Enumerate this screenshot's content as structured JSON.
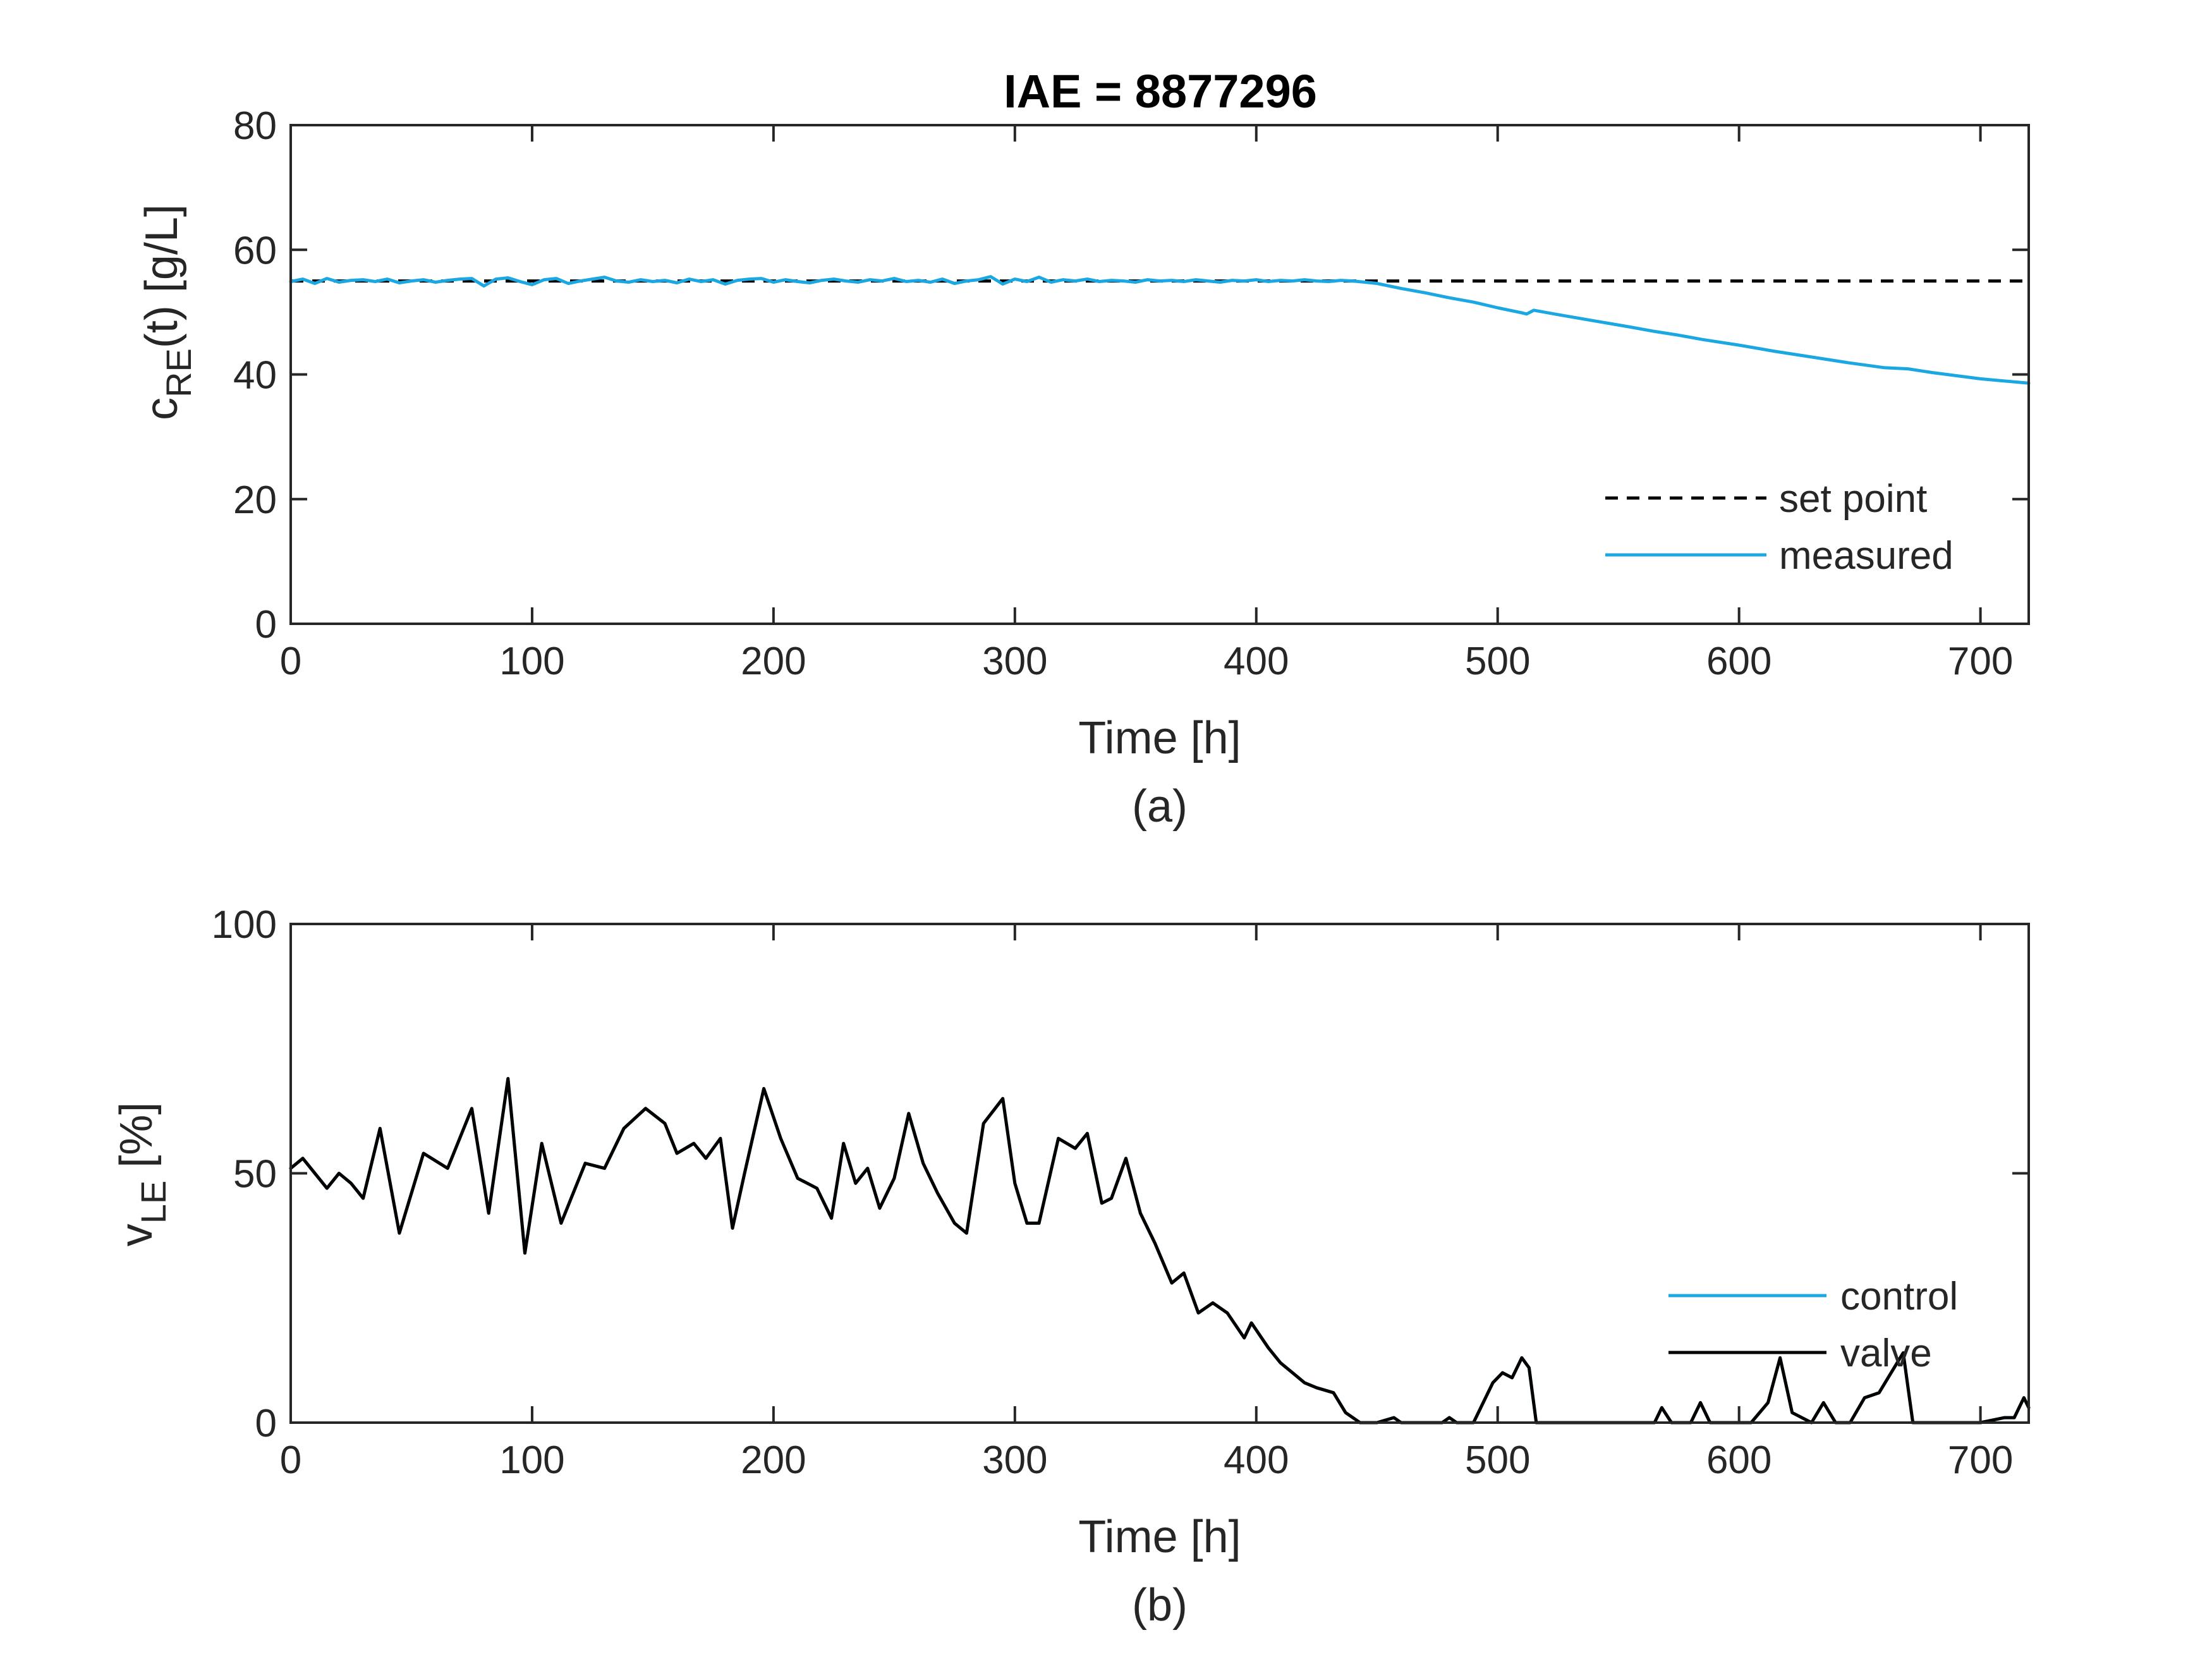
{
  "colors": {
    "axis": "#262626",
    "measured": "#1ba7e1",
    "setpoint": "#000000",
    "control": "#1ba7e1",
    "valve": "#000000"
  },
  "chart_data": [
    {
      "type": "line",
      "title": "IAE = 8877296",
      "xlabel": "Time [h]",
      "ylabel": "c",
      "ylabel_sub": "RE",
      "ylabel_rest": "(t) [g/L]",
      "caption": "(a)",
      "xlim": [
        0,
        720
      ],
      "ylim": [
        0,
        80
      ],
      "xticks": [
        0,
        100,
        200,
        300,
        400,
        500,
        600,
        700
      ],
      "yticks": [
        0,
        20,
        40,
        60,
        80
      ],
      "grid": false,
      "legend_position": "bottom-right",
      "series": [
        {
          "name": "set point",
          "style": "dashed",
          "color": "#000000",
          "x": [
            0,
            720
          ],
          "y": [
            55,
            55
          ]
        },
        {
          "name": "measured",
          "style": "solid",
          "color": "#1ba7e1",
          "x": [
            0,
            5,
            10,
            15,
            20,
            25,
            30,
            35,
            40,
            45,
            50,
            55,
            60,
            65,
            70,
            75,
            80,
            85,
            90,
            95,
            100,
            105,
            110,
            115,
            120,
            125,
            130,
            135,
            140,
            145,
            150,
            155,
            160,
            165,
            170,
            175,
            180,
            185,
            190,
            195,
            200,
            205,
            210,
            215,
            220,
            225,
            230,
            235,
            240,
            245,
            250,
            255,
            260,
            265,
            270,
            275,
            280,
            285,
            290,
            295,
            300,
            305,
            310,
            315,
            320,
            325,
            330,
            335,
            340,
            345,
            350,
            355,
            360,
            365,
            370,
            375,
            380,
            385,
            390,
            395,
            400,
            405,
            410,
            415,
            420,
            425,
            430,
            435,
            440,
            445,
            450,
            460,
            470,
            480,
            490,
            500,
            510,
            512,
            515,
            525,
            540,
            555,
            565,
            575,
            585,
            600,
            615,
            630,
            645,
            660,
            670,
            680,
            700,
            720
          ],
          "y": [
            54.9,
            55.3,
            54.6,
            55.4,
            54.8,
            55.1,
            55.2,
            54.9,
            55.3,
            54.7,
            55.0,
            55.2,
            54.8,
            55.1,
            55.3,
            55.4,
            54.2,
            55.3,
            55.5,
            54.9,
            54.4,
            55.2,
            55.4,
            54.6,
            55.0,
            55.3,
            55.6,
            55.0,
            54.8,
            55.2,
            54.9,
            55.1,
            54.7,
            55.3,
            54.9,
            55.2,
            54.5,
            55.1,
            55.3,
            55.4,
            54.8,
            55.2,
            54.9,
            54.7,
            55.1,
            55.3,
            55.0,
            54.8,
            55.2,
            55.0,
            55.4,
            54.9,
            55.1,
            54.8,
            55.3,
            54.6,
            55.0,
            55.2,
            55.7,
            54.5,
            55.3,
            54.9,
            55.6,
            54.8,
            55.2,
            55.0,
            55.3,
            54.9,
            55.1,
            55.0,
            54.8,
            55.2,
            55.0,
            55.1,
            54.9,
            55.2,
            55.0,
            54.8,
            55.1,
            55.0,
            55.2,
            54.9,
            55.1,
            55.0,
            55.2,
            55.0,
            54.9,
            55.1,
            55.0,
            54.8,
            54.6,
            53.8,
            53.1,
            52.3,
            51.6,
            50.7,
            49.9,
            49.7,
            50.3,
            49.6,
            48.6,
            47.6,
            46.9,
            46.3,
            45.6,
            44.7,
            43.7,
            42.8,
            41.9,
            41.1,
            40.9,
            40.3,
            39.3,
            38.6
          ]
        }
      ]
    },
    {
      "type": "line",
      "title": "",
      "xlabel": "Time [h]",
      "ylabel": "v",
      "ylabel_sub": "LE",
      "ylabel_rest": " [%]",
      "caption": "(b)",
      "xlim": [
        0,
        720
      ],
      "ylim": [
        0,
        100
      ],
      "xticks": [
        0,
        100,
        200,
        300,
        400,
        500,
        600,
        700
      ],
      "yticks": [
        0,
        50,
        100
      ],
      "grid": false,
      "legend_position": "bottom-right",
      "series": [
        {
          "name": "control",
          "style": "solid",
          "color": "#1ba7e1",
          "x": [
            0,
            5,
            10,
            15,
            20,
            25,
            30,
            37,
            45,
            55,
            65,
            75,
            82,
            90,
            97,
            104,
            112,
            122,
            130,
            138,
            147,
            155,
            160,
            167,
            172,
            178,
            183,
            188,
            196,
            203,
            210,
            218,
            224,
            229,
            234,
            239,
            244,
            250,
            256,
            262,
            268,
            275,
            280,
            287,
            295,
            300,
            305,
            310,
            318,
            325,
            330,
            336,
            340,
            346,
            352,
            358,
            365,
            370,
            376,
            382,
            388,
            395,
            398,
            405,
            410,
            415,
            420,
            425,
            432,
            437,
            443,
            447,
            450,
            457,
            460,
            465,
            477,
            480,
            483,
            490,
            498,
            502,
            506,
            510,
            513,
            516,
            540,
            565,
            568,
            572,
            580,
            584,
            588,
            605,
            612,
            617,
            622,
            630,
            635,
            640,
            646,
            652,
            658,
            663,
            668,
            672,
            700,
            710,
            714,
            718,
            720
          ],
          "y": [
            51,
            53,
            50,
            47,
            50,
            48,
            45,
            59,
            38,
            54,
            51,
            63,
            42,
            69,
            34,
            56,
            40,
            52,
            51,
            59,
            63,
            60,
            54,
            56,
            53,
            57,
            39,
            50,
            67,
            57,
            49,
            47,
            41,
            56,
            48,
            51,
            43,
            49,
            62,
            52,
            46,
            40,
            38,
            60,
            65,
            48,
            40,
            40,
            57,
            55,
            58,
            44,
            45,
            53,
            42,
            36,
            28,
            30,
            22,
            24,
            22,
            17,
            20,
            15,
            12,
            10,
            8,
            7,
            6,
            2,
            0,
            0,
            0,
            1,
            0,
            0,
            0,
            1,
            0,
            0,
            8,
            10,
            9,
            13,
            11,
            0,
            0,
            0,
            3,
            0,
            0,
            4,
            0,
            0,
            4,
            13,
            2,
            0,
            4,
            0,
            0,
            5,
            6,
            10,
            14,
            0,
            0,
            1,
            1,
            5,
            3
          ]
        },
        {
          "name": "valve",
          "style": "solid",
          "color": "#000000",
          "x": [
            0,
            5,
            10,
            15,
            20,
            25,
            30,
            37,
            45,
            55,
            65,
            75,
            82,
            90,
            97,
            104,
            112,
            122,
            130,
            138,
            147,
            155,
            160,
            167,
            172,
            178,
            183,
            188,
            196,
            203,
            210,
            218,
            224,
            229,
            234,
            239,
            244,
            250,
            256,
            262,
            268,
            275,
            280,
            287,
            295,
            300,
            305,
            310,
            318,
            325,
            330,
            336,
            340,
            346,
            352,
            358,
            365,
            370,
            376,
            382,
            388,
            395,
            398,
            405,
            410,
            415,
            420,
            425,
            432,
            437,
            443,
            447,
            450,
            457,
            460,
            465,
            477,
            480,
            483,
            490,
            498,
            502,
            506,
            510,
            513,
            516,
            540,
            565,
            568,
            572,
            580,
            584,
            588,
            605,
            612,
            617,
            622,
            630,
            635,
            640,
            646,
            652,
            658,
            663,
            668,
            672,
            700,
            710,
            714,
            718,
            720
          ],
          "y": [
            51,
            53,
            50,
            47,
            50,
            48,
            45,
            59,
            38,
            54,
            51,
            63,
            42,
            69,
            34,
            56,
            40,
            52,
            51,
            59,
            63,
            60,
            54,
            56,
            53,
            57,
            39,
            50,
            67,
            57,
            49,
            47,
            41,
            56,
            48,
            51,
            43,
            49,
            62,
            52,
            46,
            40,
            38,
            60,
            65,
            48,
            40,
            40,
            57,
            55,
            58,
            44,
            45,
            53,
            42,
            36,
            28,
            30,
            22,
            24,
            22,
            17,
            20,
            15,
            12,
            10,
            8,
            7,
            6,
            2,
            0,
            0,
            0,
            1,
            0,
            0,
            0,
            1,
            0,
            0,
            8,
            10,
            9,
            13,
            11,
            0,
            0,
            0,
            3,
            0,
            0,
            4,
            0,
            0,
            4,
            13,
            2,
            0,
            4,
            0,
            0,
            5,
            6,
            10,
            14,
            0,
            0,
            1,
            1,
            5,
            3
          ]
        }
      ]
    }
  ]
}
